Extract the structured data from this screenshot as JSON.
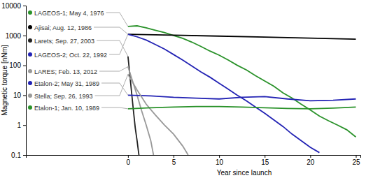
{
  "chart_data": {
    "type": "line",
    "x_label": "Year since launch",
    "y_label": "Magnetic torque [nNm]",
    "log": "y",
    "xlim": [
      -11.2,
      25.5
    ],
    "xticks": [
      0,
      5,
      10,
      15,
      20,
      25
    ],
    "ylim": [
      0.1,
      10000
    ],
    "yticks": [
      0.1,
      1,
      10,
      100,
      1000,
      10000
    ],
    "legend": "left",
    "series": [
      {
        "name": "LAGEOS-1; May 4, 1976",
        "color": "#2a922a",
        "marker": "circle",
        "x": [
          0,
          1,
          2,
          3,
          4,
          5,
          6,
          7,
          8,
          9,
          10,
          11,
          12,
          13,
          14,
          15,
          16,
          17,
          18,
          19,
          20,
          21,
          22,
          23,
          24,
          25
        ],
        "values": [
          2000,
          2100,
          1800,
          1500,
          1250,
          1000,
          800,
          600,
          430,
          300,
          220,
          150,
          100,
          70,
          45,
          30,
          20,
          12,
          8,
          5,
          3.2,
          2,
          1.4,
          1,
          0.7,
          0.4
        ]
      },
      {
        "name": "Ajisai; Aug. 12, 1986",
        "color": "#000000",
        "marker": "circle",
        "x": [
          0,
          5,
          10,
          15,
          20,
          25
        ],
        "values": [
          1100,
          1020,
          950,
          880,
          810,
          750
        ]
      },
      {
        "name": "Larets; Sep. 27, 2003",
        "color": "#222222",
        "marker": "circle",
        "x": [
          0,
          0.2,
          0.4,
          0.6,
          0.8,
          1.0,
          1.2
        ],
        "values": [
          200,
          50,
          12,
          3,
          0.8,
          0.3,
          0.1
        ]
      },
      {
        "name": "LAGEOS-2; Oct. 22, 1992",
        "color": "#2323b4",
        "marker": "circle",
        "x": [
          0,
          1,
          2,
          3,
          4,
          5,
          6,
          7,
          8,
          9,
          10,
          11,
          12,
          13,
          14,
          15,
          16,
          17,
          18,
          19,
          20,
          21
        ],
        "values": [
          1100,
          900,
          700,
          500,
          350,
          230,
          150,
          95,
          60,
          40,
          25,
          16,
          10,
          6.5,
          4,
          2.5,
          1.5,
          0.9,
          0.5,
          0.3,
          0.18,
          0.12
        ]
      },
      {
        "name": "LARES; Feb. 13, 2012",
        "color": "#999999",
        "marker": "circle",
        "x": [
          0,
          0.5,
          1,
          1.5,
          2,
          2.5,
          2.8
        ],
        "values": [
          90,
          30,
          10,
          3,
          1,
          0.3,
          0.1
        ]
      },
      {
        "name": "Etalon-2; May 31, 1989",
        "color": "#2323b4",
        "marker": "circle",
        "x": [
          0,
          2.5,
          5,
          7.5,
          10,
          12.5,
          15,
          17.5,
          20,
          22.5,
          25
        ],
        "values": [
          10,
          9.5,
          8.5,
          8,
          7.5,
          8.5,
          9,
          7.5,
          6.5,
          6.8,
          7.5
        ]
      },
      {
        "name": "Stella; Sep. 26, 1993",
        "color": "#999999",
        "marker": "circle",
        "x": [
          0,
          1,
          2,
          3,
          4,
          5,
          6,
          6.6
        ],
        "values": [
          50,
          15,
          5,
          2.2,
          1,
          0.5,
          0.2,
          0.1
        ]
      },
      {
        "name": "Etalon-1; Jan. 10, 1989",
        "color": "#2a922a",
        "marker": "circle",
        "x": [
          0,
          2.5,
          5,
          7.5,
          10,
          12.5,
          15,
          17.5,
          20,
          22.5,
          25
        ],
        "values": [
          3.5,
          3.8,
          4,
          4.2,
          4.2,
          4,
          3.8,
          3.6,
          3.5,
          3.7,
          4
        ]
      }
    ]
  }
}
